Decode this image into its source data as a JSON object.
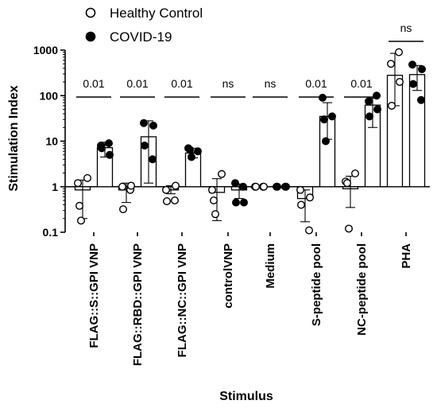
{
  "chart_data": {
    "type": "bar",
    "ylabel": "Stimulation Index",
    "xlabel": "Stimulus",
    "yscale": "log",
    "ylim": [
      0.1,
      1000
    ],
    "yticks": [
      {
        "value": 0.1,
        "label": "0.1"
      },
      {
        "value": 1,
        "label": "1"
      },
      {
        "value": 10,
        "label": "10"
      },
      {
        "value": 100,
        "label": "100"
      },
      {
        "value": 1000,
        "label": "1000"
      }
    ],
    "categories": [
      "FLAG::S::GPI VNP",
      "FLAG::RBD::GPI VNP",
      "FLAG::NC::GPI VNP",
      "controlVNP",
      "Medium",
      "S-peptide pool",
      "NC-peptide pool",
      "PHA"
    ],
    "series": [
      {
        "name": "Healthy Control",
        "marker": "open-circle",
        "color": "#ffffff",
        "means": [
          0.85,
          0.85,
          0.85,
          0.75,
          1.0,
          0.55,
          0.9,
          280
        ],
        "error_low": [
          0.2,
          0.45,
          0.7,
          0.18,
          1.0,
          0.17,
          0.35,
          60
        ],
        "error_high": [
          1.4,
          1.2,
          1.05,
          1.5,
          1.0,
          0.85,
          1.7,
          850
        ],
        "points": [
          [
            1.2,
            1.55,
            0.38,
            0.18
          ],
          [
            1.0,
            0.85,
            1.05,
            0.32
          ],
          [
            0.85,
            1.05,
            0.48,
            0.5
          ],
          [
            0.85,
            1.9,
            0.5,
            0.25
          ],
          [
            1.0,
            1.0,
            1.0,
            1.0
          ],
          [
            0.85,
            0.58,
            0.4,
            0.11
          ],
          [
            1.3,
            1.95,
            1.2,
            0.12
          ],
          [
            500,
            900,
            200,
            60
          ]
        ]
      },
      {
        "name": "COVID-19",
        "marker": "filled-circle",
        "color": "#000000",
        "means": [
          7.2,
          12.5,
          5.5,
          0.85,
          1.0,
          35,
          62,
          290
        ],
        "error_low": [
          4.5,
          1.2,
          4.3,
          0.55,
          1.0,
          11,
          20,
          130
        ],
        "error_high": [
          9.5,
          28,
          7.0,
          1.15,
          1.0,
          70,
          88,
          460
        ],
        "points": [
          [
            8.0,
            9.0,
            5.0,
            7.0
          ],
          [
            25,
            22,
            8.0,
            4.0
          ],
          [
            7.0,
            6.0,
            6.5,
            4.5
          ],
          [
            1.2,
            1.0,
            0.45,
            0.45
          ],
          [
            1.0,
            1.0,
            1.0,
            1.0
          ],
          [
            90,
            35,
            30,
            10
          ],
          [
            75,
            100,
            50,
            35
          ],
          [
            480,
            380,
            180,
            80
          ]
        ]
      }
    ],
    "significance": [
      "0.01",
      "0.01",
      "0.01",
      "ns",
      "ns",
      "0.01",
      "0.01",
      "ns"
    ],
    "legend": {
      "position": "top-center",
      "entries": [
        "Healthy Control",
        "COVID-19"
      ]
    },
    "grid": false
  }
}
